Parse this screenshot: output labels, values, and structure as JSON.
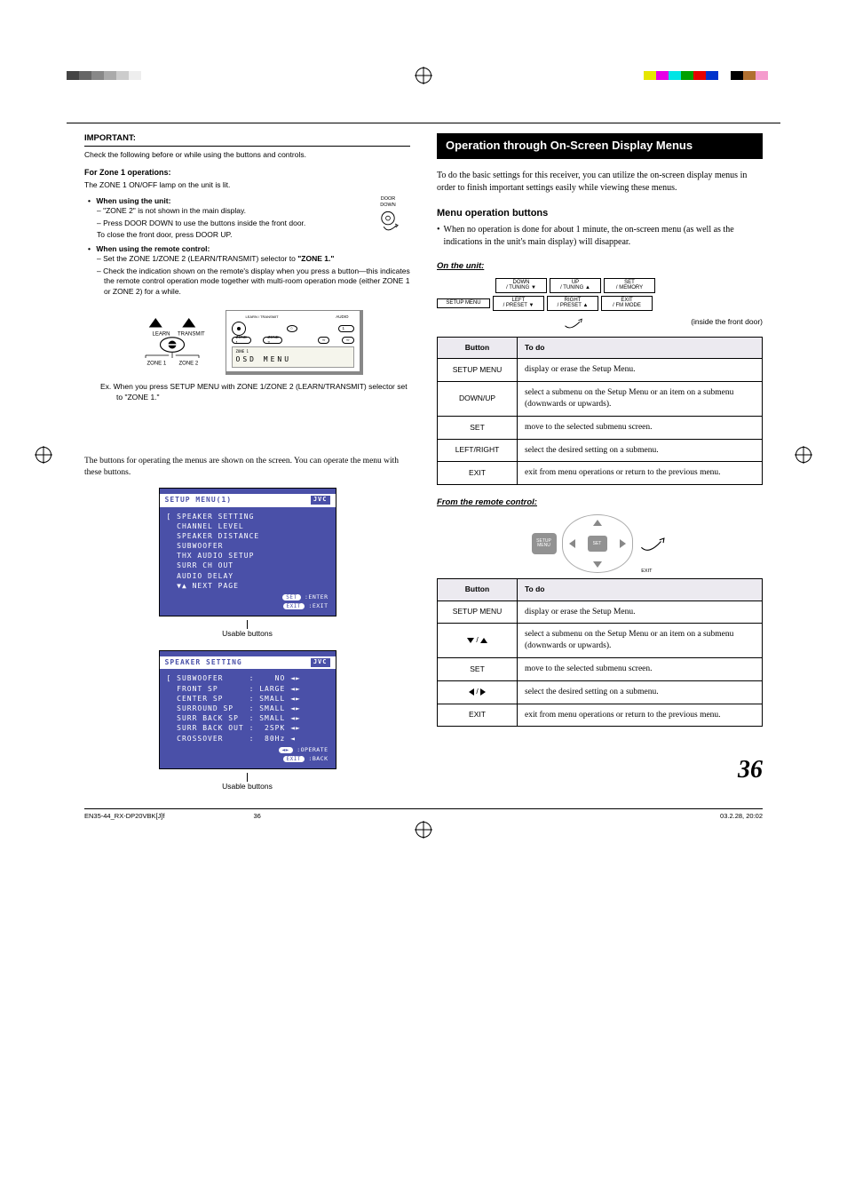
{
  "registration_bars": {
    "left_gray": [
      "#444",
      "#666",
      "#888",
      "#aaa",
      "#ccc",
      "#eee",
      "#fff",
      "#fff",
      "#fff",
      "#fff",
      "#fff"
    ],
    "right_cmyk": [
      "#e6e600",
      "#e600e6",
      "#00e5e5",
      "#00a000",
      "#e60000",
      "#0033cc",
      "#fff",
      "#000",
      "#b07030",
      "#f59ccd",
      "#fff"
    ]
  },
  "left": {
    "important": "IMPORTANT:",
    "important_line": "Check the following before or while using the buttons and controls.",
    "zone1_head": "For Zone 1 operations:",
    "zone1_lamp": "The ZONE 1 ON/OFF lamp on the unit is lit.",
    "using_unit": "When using the unit:",
    "unit_dash1": "\"ZONE 2\" is not shown in the main display.",
    "unit_dash2": "Press DOOR DOWN to use the buttons inside the front door.",
    "unit_dash2b": "To close the front door, press DOOR UP.",
    "door_label": "DOOR\nDOWN",
    "using_remote": "When using the remote control:",
    "remote_dash1_a": "Set the ZONE 1/ZONE 2 (LEARN/TRANSMIT) selector to ",
    "remote_dash1_b": "\"ZONE 1.\"",
    "remote_dash2": "Check the indication shown on the remote's display when you press a button—this indicates the remote control operation mode together with multi-room operation mode (either ZONE 1 or ZONE 2) for a while.",
    "zone_labels": {
      "learn": "LEARN",
      "transmit": "TRANSMIT",
      "z1": "ZONE 1",
      "z2": "ZONE 2"
    },
    "remote_panel": {
      "row1": [
        "ZONE 1",
        "ZONE 2",
        "CONTROL",
        "1"
      ],
      "row2": [
        "LEARN",
        "TRANSMIT",
        "",
        "TRANSMIT"
      ],
      "audio": "AUDIO",
      "lcd_zone": "ZONE 1",
      "lcd_text": "OSD MENU"
    },
    "example": "Ex. When you press SETUP MENU with ZONE 1/ZONE 2 (LEARN/TRANSMIT) selector set to \"ZONE 1.\"",
    "menu_note": "The buttons for operating the menus are shown on the screen. You can operate the menu with these buttons.",
    "osd1": {
      "title": "SETUP MENU(1)",
      "brand": "JVC",
      "lines": "[ SPEAKER SETTING\n  CHANNEL LEVEL\n  SPEAKER DISTANCE\n  SUBWOOFER\n  THX AUDIO SETUP\n  SURR CH OUT\n  AUDIO DELAY\n  ▼▲ NEXT PAGE",
      "legend1": "SET :ENTER",
      "legend2": "EXIT :EXIT",
      "usable": "Usable buttons"
    },
    "osd2": {
      "title": "SPEAKER SETTING",
      "brand": "JVC",
      "lines": "[ SUBWOOFER     :    NO ◄►\n  FRONT SP      : LARGE ◄►\n  CENTER SP     : SMALL ◄►\n  SURROUND SP   : SMALL ◄►\n  SURR BACK SP  : SMALL ◄►\n  SURR BACK OUT :  2SPK ◄►\n  CROSSOVER     :  80Hz ◄",
      "legend1": "◄► :OPERATE",
      "legend2": "EXIT :BACK",
      "usable": "Usable buttons"
    }
  },
  "right": {
    "section_head": "Operation through On-Screen Display Menus",
    "intro": "To do the basic settings for this receiver, you can utilize the on-screen display menus in order to finish important settings easily while viewing these menus.",
    "menu_op_head": "Menu operation buttons",
    "menu_op_bullet": "When no operation is done for about 1 minute, the on-screen menu (as well as the indications in the unit's main display) will disappear.",
    "on_unit": "On the unit:",
    "unit_diag": {
      "top": [
        "DOWN\n/ TUNING ▼",
        "UP\n/ TUNING ▲",
        "SET\n/ MEMORY"
      ],
      "bottom": [
        "SETUP MENU",
        "LEFT\n/ PRESET ▼",
        "RIGHT\n/ PRESET ▲",
        "EXIT\n/ FM MODE"
      ],
      "inside": "(inside the front door)"
    },
    "table1": {
      "head": [
        "Button",
        "To do"
      ],
      "rows": [
        [
          "SETUP MENU",
          "display or erase the Setup Menu."
        ],
        [
          "DOWN/UP",
          "select a submenu on the Setup Menu or an item on a submenu (downwards or upwards)."
        ],
        [
          "SET",
          "move to the selected submenu screen."
        ],
        [
          "LEFT/RIGHT",
          "select the desired setting on a submenu."
        ],
        [
          "EXIT",
          "exit from menu operations or return to the previous menu."
        ]
      ]
    },
    "from_remote": "From the remote control:",
    "remote_pad": {
      "setup": "SETUP\nMENU",
      "set": "SET",
      "exit": "EXIT"
    },
    "table2": {
      "head": [
        "Button",
        "To do"
      ],
      "rows": [
        [
          "SETUP MENU",
          "display or erase the Setup Menu."
        ],
        [
          "__DOWNUP__",
          "select a submenu on the Setup Menu or an item on a submenu (downwards or upwards)."
        ],
        [
          "SET",
          "move to the selected submenu screen."
        ],
        [
          "__LEFTRIGHT__",
          "select the desired setting on a submenu."
        ],
        [
          "EXIT",
          "exit from menu operations or return to the previous menu."
        ]
      ]
    }
  },
  "page_num": "36",
  "footer": {
    "file": "EN35-44_RX-DP20VBK[J]f",
    "pg": "36",
    "stamp": "03.2.28, 20:02"
  }
}
